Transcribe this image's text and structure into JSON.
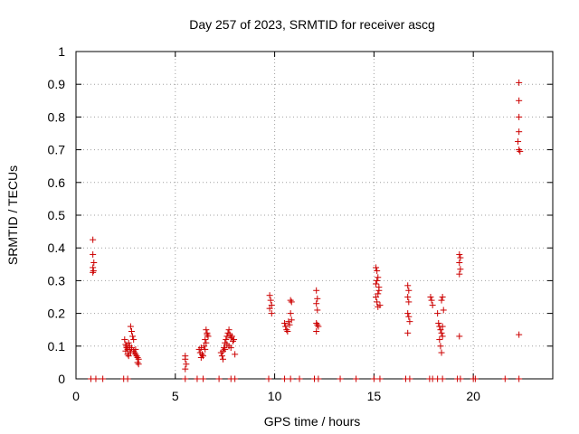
{
  "chart_data": {
    "type": "scatter",
    "title": "Day 257 of 2023, SRMTID for receiver ascg",
    "xlabel": "GPS time / hours",
    "ylabel": "SRMTID / TECUs",
    "xlim": [
      0,
      24
    ],
    "ylim": [
      0,
      1
    ],
    "x_ticks": [
      0,
      5,
      10,
      15,
      20
    ],
    "y_ticks": [
      0,
      0.1,
      0.2,
      0.3,
      0.4,
      0.5,
      0.6,
      0.7,
      0.8,
      0.9,
      1
    ],
    "x_tick_labels": [
      "0",
      "5",
      "10",
      "15",
      "20"
    ],
    "y_tick_labels": [
      "0",
      "0.1",
      "0.2",
      "0.3",
      "0.4",
      "0.5",
      "0.6",
      "0.7",
      "0.8",
      "0.9",
      "1"
    ],
    "grid": true,
    "marker": "+",
    "marker_color": "#cc0000",
    "series": [
      {
        "name": "SRMTID",
        "points": [
          [
            0.85,
            0.425
          ],
          [
            0.85,
            0.38
          ],
          [
            0.9,
            0.355
          ],
          [
            0.85,
            0.34
          ],
          [
            0.88,
            0.33
          ],
          [
            0.85,
            0.325
          ],
          [
            2.45,
            0.12
          ],
          [
            2.5,
            0.105
          ],
          [
            2.55,
            0.095
          ],
          [
            2.5,
            0.085
          ],
          [
            2.6,
            0.075
          ],
          [
            2.65,
            0.11
          ],
          [
            2.7,
            0.09
          ],
          [
            2.75,
            0.16
          ],
          [
            2.8,
            0.145
          ],
          [
            2.85,
            0.13
          ],
          [
            2.9,
            0.12
          ],
          [
            2.7,
            0.1
          ],
          [
            2.8,
            0.095
          ],
          [
            2.9,
            0.085
          ],
          [
            2.95,
            0.08
          ],
          [
            3.0,
            0.075
          ],
          [
            3.05,
            0.07
          ],
          [
            3.1,
            0.065
          ],
          [
            3.15,
            0.06
          ],
          [
            3.1,
            0.05
          ],
          [
            3.15,
            0.045
          ],
          [
            2.6,
            0.09
          ],
          [
            2.75,
            0.08
          ],
          [
            2.65,
            0.07
          ],
          [
            2.55,
            0.1
          ],
          [
            3.0,
            0.09
          ],
          [
            5.5,
            0.07
          ],
          [
            5.5,
            0.06
          ],
          [
            5.55,
            0.045
          ],
          [
            5.5,
            0.03
          ],
          [
            6.2,
            0.09
          ],
          [
            6.25,
            0.08
          ],
          [
            6.3,
            0.095
          ],
          [
            6.35,
            0.075
          ],
          [
            6.4,
            0.07
          ],
          [
            6.3,
            0.065
          ],
          [
            6.45,
            0.1
          ],
          [
            6.5,
            0.12
          ],
          [
            6.55,
            0.15
          ],
          [
            6.6,
            0.14
          ],
          [
            6.65,
            0.13
          ],
          [
            6.55,
            0.11
          ],
          [
            6.6,
            0.135
          ],
          [
            6.5,
            0.09
          ],
          [
            7.3,
            0.08
          ],
          [
            7.35,
            0.07
          ],
          [
            7.4,
            0.06
          ],
          [
            7.45,
            0.095
          ],
          [
            7.5,
            0.11
          ],
          [
            7.55,
            0.12
          ],
          [
            7.6,
            0.13
          ],
          [
            7.65,
            0.14
          ],
          [
            7.7,
            0.15
          ],
          [
            7.75,
            0.135
          ],
          [
            7.8,
            0.125
          ],
          [
            7.85,
            0.13
          ],
          [
            7.9,
            0.115
          ],
          [
            7.7,
            0.1
          ],
          [
            7.6,
            0.105
          ],
          [
            7.5,
            0.09
          ],
          [
            7.4,
            0.085
          ],
          [
            7.8,
            0.095
          ],
          [
            7.95,
            0.12
          ],
          [
            8.0,
            0.075
          ],
          [
            9.75,
            0.255
          ],
          [
            9.8,
            0.24
          ],
          [
            9.85,
            0.225
          ],
          [
            9.75,
            0.215
          ],
          [
            9.85,
            0.2
          ],
          [
            10.5,
            0.17
          ],
          [
            10.55,
            0.16
          ],
          [
            10.6,
            0.15
          ],
          [
            10.65,
            0.145
          ],
          [
            10.7,
            0.175
          ],
          [
            10.75,
            0.165
          ],
          [
            10.8,
            0.24
          ],
          [
            10.85,
            0.235
          ],
          [
            10.8,
            0.2
          ],
          [
            10.85,
            0.18
          ],
          [
            12.1,
            0.27
          ],
          [
            12.15,
            0.245
          ],
          [
            12.1,
            0.23
          ],
          [
            12.15,
            0.21
          ],
          [
            12.1,
            0.17
          ],
          [
            12.15,
            0.165
          ],
          [
            12.2,
            0.16
          ],
          [
            12.1,
            0.145
          ],
          [
            15.1,
            0.34
          ],
          [
            15.15,
            0.33
          ],
          [
            15.2,
            0.31
          ],
          [
            15.1,
            0.29
          ],
          [
            15.25,
            0.28
          ],
          [
            15.2,
            0.26
          ],
          [
            15.1,
            0.25
          ],
          [
            15.15,
            0.235
          ],
          [
            15.3,
            0.225
          ],
          [
            15.2,
            0.22
          ],
          [
            15.25,
            0.27
          ],
          [
            15.15,
            0.3
          ],
          [
            16.7,
            0.285
          ],
          [
            16.75,
            0.27
          ],
          [
            16.7,
            0.25
          ],
          [
            16.75,
            0.235
          ],
          [
            16.7,
            0.2
          ],
          [
            16.75,
            0.19
          ],
          [
            16.8,
            0.175
          ],
          [
            16.7,
            0.14
          ],
          [
            17.85,
            0.25
          ],
          [
            17.9,
            0.24
          ],
          [
            17.95,
            0.225
          ],
          [
            18.2,
            0.2
          ],
          [
            18.25,
            0.17
          ],
          [
            18.3,
            0.16
          ],
          [
            18.35,
            0.15
          ],
          [
            18.4,
            0.14
          ],
          [
            18.45,
            0.13
          ],
          [
            18.3,
            0.12
          ],
          [
            18.35,
            0.1
          ],
          [
            18.4,
            0.08
          ],
          [
            18.45,
            0.25
          ],
          [
            18.4,
            0.24
          ],
          [
            18.5,
            0.21
          ],
          [
            18.45,
            0.16
          ],
          [
            19.3,
            0.38
          ],
          [
            19.35,
            0.37
          ],
          [
            19.3,
            0.355
          ],
          [
            19.35,
            0.335
          ],
          [
            19.3,
            0.32
          ],
          [
            19.3,
            0.13
          ],
          [
            22.3,
            0.905
          ],
          [
            22.3,
            0.85
          ],
          [
            22.3,
            0.8
          ],
          [
            22.3,
            0.755
          ],
          [
            22.25,
            0.725
          ],
          [
            22.3,
            0.7
          ],
          [
            22.35,
            0.695
          ],
          [
            22.3,
            0.135
          ],
          [
            0.75,
            0.0
          ],
          [
            1.0,
            0.0
          ],
          [
            1.35,
            0.0
          ],
          [
            2.4,
            0.0
          ],
          [
            2.6,
            0.0
          ],
          [
            5.5,
            0.0
          ],
          [
            6.1,
            0.0
          ],
          [
            6.4,
            0.0
          ],
          [
            7.2,
            0.0
          ],
          [
            7.8,
            0.0
          ],
          [
            8.0,
            0.0
          ],
          [
            9.7,
            0.0
          ],
          [
            10.5,
            0.0
          ],
          [
            10.8,
            0.0
          ],
          [
            11.25,
            0.0
          ],
          [
            12.0,
            0.0
          ],
          [
            12.2,
            0.0
          ],
          [
            13.3,
            0.0
          ],
          [
            14.1,
            0.0
          ],
          [
            15.0,
            0.0
          ],
          [
            15.3,
            0.0
          ],
          [
            16.6,
            0.0
          ],
          [
            16.8,
            0.0
          ],
          [
            17.8,
            0.0
          ],
          [
            17.95,
            0.0
          ],
          [
            18.2,
            0.0
          ],
          [
            18.45,
            0.0
          ],
          [
            19.2,
            0.0
          ],
          [
            19.35,
            0.0
          ],
          [
            20.0,
            0.0
          ],
          [
            20.1,
            0.0
          ],
          [
            21.6,
            0.0
          ],
          [
            22.3,
            0.0
          ]
        ]
      }
    ]
  }
}
